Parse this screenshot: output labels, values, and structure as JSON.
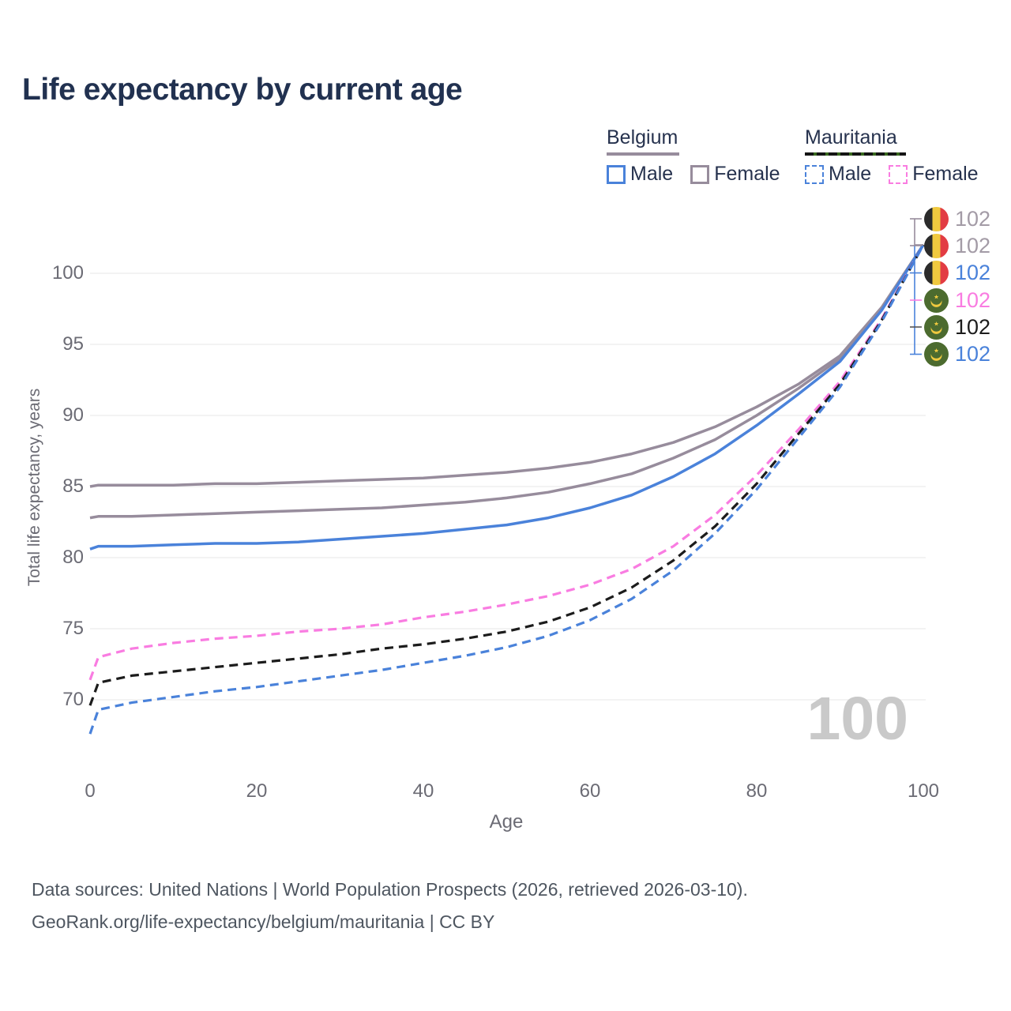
{
  "title": "Life expectancy by current age",
  "watermark_age": "100",
  "y_axis": {
    "label": "Total life expectancy, years",
    "ticks": [
      100,
      95,
      90,
      85,
      80,
      75,
      70
    ]
  },
  "x_axis": {
    "label": "Age",
    "ticks": [
      0,
      20,
      40,
      60,
      80,
      100
    ]
  },
  "legend": {
    "groups": [
      {
        "id": "belgium",
        "name": "Belgium",
        "underline_style": "solid",
        "underline_color": "#978c9c",
        "underline_width": 92,
        "items": [
          {
            "id": "belgium-male",
            "label": "Male",
            "swatch_color": "#4a82da",
            "swatch_style": "solid"
          },
          {
            "id": "belgium-female",
            "label": "Female",
            "swatch_color": "#978c9c",
            "swatch_style": "solid"
          }
        ]
      },
      {
        "id": "mauritania",
        "name": "Mauritania",
        "underline_style": "dashed",
        "underline_color": "#151515",
        "underline_gap_color": "#39691f",
        "underline_width": 128,
        "items": [
          {
            "id": "mauritania-male",
            "label": "Male",
            "swatch_color": "#4a82da",
            "swatch_style": "dashed"
          },
          {
            "id": "mauritania-female",
            "label": "Female",
            "swatch_color": "#f97ce1",
            "swatch_style": "dashed"
          }
        ]
      }
    ]
  },
  "end_labels": [
    {
      "flag": "belgium",
      "series": "Belgium Female",
      "value": "102",
      "text_color": "#a39ba6",
      "leader_color": "#978c9c"
    },
    {
      "flag": "belgium",
      "series": "Belgium Both sexes",
      "value": "102",
      "text_color": "#a39ba6",
      "leader_color": "#978c9c"
    },
    {
      "flag": "belgium",
      "series": "Belgium Male",
      "value": "102",
      "text_color": "#4a82da",
      "leader_color": "#4a82da"
    },
    {
      "flag": "mauritania",
      "series": "Mauritania Female",
      "value": "102",
      "text_color": "#f97ce1",
      "leader_color": "#f97ce1"
    },
    {
      "flag": "mauritania",
      "series": "Mauritania Both sexes",
      "value": "102",
      "text_color": "#1c1c1c",
      "leader_color": "#555555"
    },
    {
      "flag": "mauritania",
      "series": "Mauritania Male",
      "value": "102",
      "text_color": "#4a82da",
      "leader_color": "#4a82da"
    }
  ],
  "footer": {
    "line1": "Data sources: United Nations | World Population Prospects (2026, retrieved 2026-03-10).",
    "line2": "GeoRank.org/life-expectancy/belgium/mauritania | CC BY"
  },
  "colors": {
    "title": "#213150",
    "axis_text": "#6b6b74",
    "gridline": "#ececec",
    "belgium_line": "#978c9c",
    "male_blue": "#4a82da",
    "mauritania_pink": "#f97ce1",
    "mauritania_black": "#1c1c1c",
    "watermark": "#c9c9c9",
    "flag_belgium_black": "#2b2b2b",
    "flag_belgium_yellow": "#f0c93f",
    "flag_belgium_red": "#e23c43",
    "flag_mauritania_green": "#4c6b2f"
  },
  "chart_data": {
    "type": "line",
    "title": "Life expectancy by current age",
    "xlabel": "Age",
    "ylabel": "Total life expectancy, years",
    "xlim": [
      0,
      100
    ],
    "ylim_displayed": [
      66.5,
      103.5
    ],
    "x_ticks": [
      0,
      20,
      40,
      60,
      80,
      100
    ],
    "y_ticks": [
      100,
      95,
      90,
      85,
      80,
      75,
      70
    ],
    "grid": true,
    "legend_position": "top-right",
    "x": [
      0,
      1,
      5,
      10,
      15,
      20,
      25,
      30,
      35,
      40,
      45,
      50,
      55,
      60,
      65,
      70,
      75,
      80,
      85,
      90,
      95,
      100
    ],
    "series": [
      {
        "name": "Belgium Female",
        "country": "Belgium",
        "sex": "Female",
        "style": "solid",
        "color": "#978c9c",
        "end_value_label": "102",
        "values": [
          85.0,
          85.1,
          85.1,
          85.1,
          85.2,
          85.2,
          85.3,
          85.4,
          85.5,
          85.6,
          85.8,
          86.0,
          86.3,
          86.7,
          87.3,
          88.1,
          89.2,
          90.6,
          92.2,
          94.2,
          97.6,
          102
        ]
      },
      {
        "name": "Belgium Both sexes",
        "country": "Belgium",
        "sex": "Both",
        "style": "solid",
        "color": "#978c9c",
        "end_value_label": "102",
        "values": [
          82.8,
          82.9,
          82.9,
          83.0,
          83.1,
          83.2,
          83.3,
          83.4,
          83.5,
          83.7,
          83.9,
          84.2,
          84.6,
          85.2,
          85.9,
          87.0,
          88.3,
          90.0,
          91.9,
          94.0,
          97.5,
          102
        ]
      },
      {
        "name": "Belgium Male",
        "country": "Belgium",
        "sex": "Male",
        "style": "solid",
        "color": "#4a82da",
        "end_value_label": "102",
        "values": [
          80.6,
          80.8,
          80.8,
          80.9,
          81.0,
          81.0,
          81.1,
          81.3,
          81.5,
          81.7,
          82.0,
          82.3,
          82.8,
          83.5,
          84.4,
          85.7,
          87.3,
          89.3,
          91.5,
          93.8,
          97.4,
          102
        ]
      },
      {
        "name": "Mauritania Female",
        "country": "Mauritania",
        "sex": "Female",
        "style": "dashed",
        "color": "#f97ce1",
        "end_value_label": "102",
        "values": [
          71.4,
          73.0,
          73.6,
          74.0,
          74.3,
          74.5,
          74.8,
          75.0,
          75.3,
          75.8,
          76.2,
          76.7,
          77.3,
          78.1,
          79.2,
          80.8,
          83.0,
          85.8,
          89.0,
          92.4,
          96.8,
          102
        ]
      },
      {
        "name": "Mauritania Both sexes",
        "country": "Mauritania",
        "sex": "Both",
        "style": "dashed",
        "color": "#1c1c1c",
        "end_value_label": "102",
        "values": [
          69.6,
          71.2,
          71.7,
          72.0,
          72.3,
          72.6,
          72.9,
          73.2,
          73.6,
          73.9,
          74.3,
          74.8,
          75.5,
          76.5,
          77.9,
          79.8,
          82.2,
          85.2,
          88.7,
          92.2,
          96.7,
          102
        ]
      },
      {
        "name": "Mauritania Male",
        "country": "Mauritania",
        "sex": "Male",
        "style": "dashed",
        "color": "#4a82da",
        "end_value_label": "102",
        "values": [
          67.6,
          69.3,
          69.8,
          70.2,
          70.6,
          70.9,
          71.3,
          71.7,
          72.1,
          72.6,
          73.1,
          73.7,
          74.5,
          75.6,
          77.1,
          79.1,
          81.7,
          84.8,
          88.4,
          92.0,
          96.6,
          102
        ]
      }
    ]
  }
}
